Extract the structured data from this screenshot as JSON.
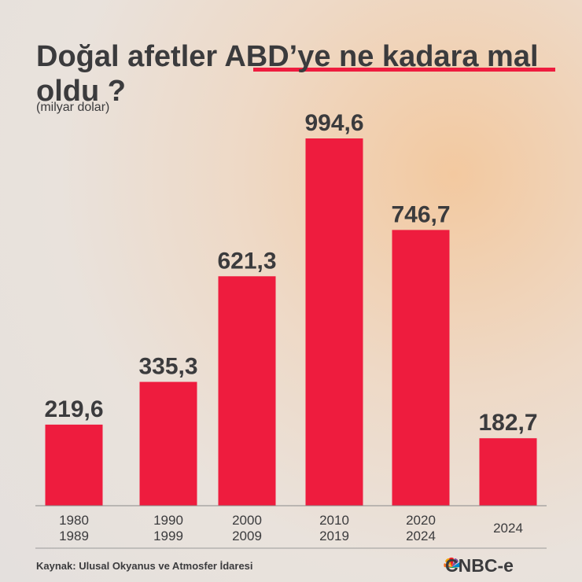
{
  "chart_data": {
    "type": "bar",
    "title": "Doğal afetler ABD’ye ne kadara mal oldu ?",
    "subtitle": "(milyar dolar)",
    "categories": [
      [
        "1980",
        "1989"
      ],
      [
        "1990",
        "1999"
      ],
      [
        "2000",
        "2009"
      ],
      [
        "2010",
        "2019"
      ],
      [
        "2020",
        "2024"
      ],
      [
        "2024"
      ]
    ],
    "values": [
      219.6,
      335.3,
      621.3,
      994.6,
      746.7,
      182.7
    ],
    "value_labels": [
      "219,6",
      "335,3",
      "621,3",
      "994,6",
      "746,7",
      "182,7"
    ],
    "color": "#ee1c3e",
    "source": "Kaynak: Ulusal Okyanus ve Atmosfer İdaresi",
    "brand": "CNBC-e"
  }
}
